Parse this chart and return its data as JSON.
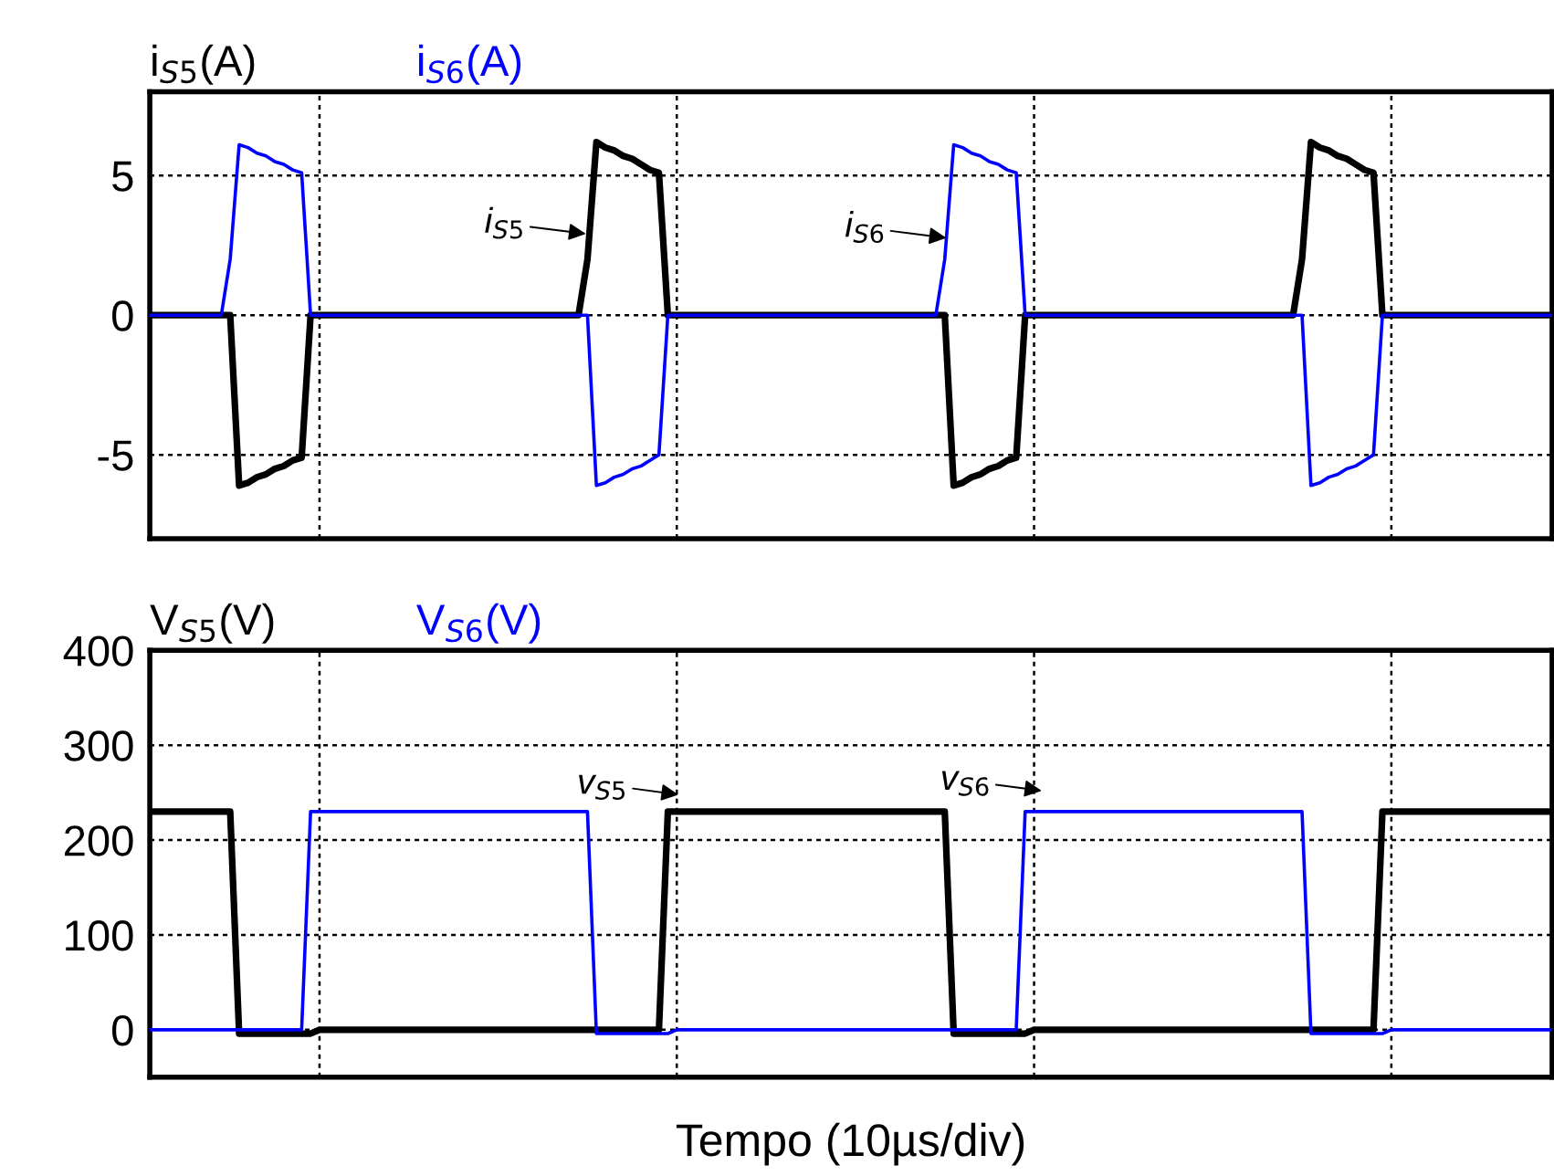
{
  "chart_data": [
    {
      "type": "line",
      "categories": [
        null,
        null,
        null,
        null,
        null,
        null,
        null,
        null,
        null,
        null,
        null,
        null,
        null,
        null,
        null,
        null,
        null,
        null,
        null,
        null,
        null,
        null,
        null,
        null,
        null,
        null,
        null,
        null,
        null,
        null,
        null,
        null,
        null,
        null,
        null,
        null,
        null,
        null,
        null,
        null,
        null,
        null,
        null,
        null,
        null,
        null,
        null,
        null,
        null,
        null,
        null,
        null,
        null,
        null,
        null,
        null,
        null,
        null,
        null,
        null,
        null,
        null,
        null,
        null,
        null,
        null,
        null,
        null,
        null,
        null,
        null,
        null,
        null,
        null,
        null,
        null,
        null,
        null,
        null,
        null,
        null,
        null,
        null,
        null,
        null,
        null,
        null,
        null,
        null,
        null,
        null,
        null,
        null,
        null,
        null,
        null,
        null,
        null,
        null,
        null,
        null,
        null,
        null,
        null,
        null,
        null,
        null,
        null,
        null,
        null,
        null,
        null,
        null,
        null,
        null,
        null,
        null,
        null,
        null,
        null,
        null,
        null,
        null,
        null,
        null,
        null,
        null,
        null,
        null,
        null,
        null,
        null,
        null,
        null,
        null,
        null,
        null,
        null,
        null,
        null,
        null,
        null,
        null,
        null,
        null,
        null,
        null,
        null,
        null,
        null,
        null,
        null,
        null,
        null,
        null,
        null,
        null,
        null
      ],
      "ylim": [
        -8,
        8
      ],
      "yticks": [
        -5,
        0,
        5
      ],
      "grid": true,
      "line_style": "solid",
      "tick_labels": "y",
      "series": [
        {
          "name": "i$_{S5}$(A)",
          "color": "#000000",
          "values": [
            0,
            0,
            0,
            0,
            0,
            0,
            0,
            0,
            0,
            0,
            -6.1,
            -6.0,
            -5.8,
            -5.7,
            -5.5,
            -5.4,
            -5.2,
            -5.1,
            0,
            0,
            0,
            0,
            0,
            0,
            0,
            0,
            0,
            0,
            0,
            0,
            0,
            0,
            0,
            0,
            0,
            0,
            0,
            0,
            0,
            0,
            0,
            0,
            0,
            0,
            0,
            0,
            0,
            0,
            0,
            2,
            6.2,
            6.0,
            5.9,
            5.7,
            5.6,
            5.4,
            5.2,
            5.1,
            0,
            0,
            0,
            0,
            0,
            0,
            0,
            0,
            0,
            0,
            0,
            0,
            0,
            0,
            0,
            0,
            0,
            0,
            0,
            0,
            0,
            0,
            0,
            0,
            0,
            0,
            0,
            0,
            0,
            0,
            0,
            0,
            -6.1,
            -6.0,
            -5.8,
            -5.7,
            -5.5,
            -5.4,
            -5.2,
            -5.1,
            0,
            0,
            0,
            0,
            0,
            0,
            0,
            0,
            0,
            0,
            0,
            0,
            0,
            0,
            0,
            0,
            0,
            0,
            0,
            0,
            0,
            0,
            0,
            0,
            0,
            0,
            0,
            0,
            0,
            0,
            0,
            2,
            6.2,
            6.0,
            5.9,
            5.7,
            5.6,
            5.4,
            5.2,
            5.1,
            0,
            0,
            0,
            0,
            0,
            0,
            0,
            0,
            0,
            0,
            0,
            0,
            0,
            0,
            0,
            0,
            0,
            0,
            0,
            0
          ]
        },
        {
          "name": "i$_{S6}$(A)",
          "color": "#0000ff",
          "values": [
            0,
            0,
            0,
            0,
            0,
            0,
            0,
            0,
            0,
            2,
            6.1,
            6.0,
            5.8,
            5.7,
            5.5,
            5.4,
            5.2,
            5.1,
            0,
            0,
            0,
            0,
            0,
            0,
            0,
            0,
            0,
            0,
            0,
            0,
            0,
            0,
            0,
            0,
            0,
            0,
            0,
            0,
            0,
            0,
            0,
            0,
            0,
            0,
            0,
            0,
            0,
            0,
            0,
            0,
            -6.1,
            -6.0,
            -5.8,
            -5.7,
            -5.5,
            -5.4,
            -5.2,
            -5.0,
            0,
            0,
            0,
            0,
            0,
            0,
            0,
            0,
            0,
            0,
            0,
            0,
            0,
            0,
            0,
            0,
            0,
            0,
            0,
            0,
            0,
            0,
            0,
            0,
            0,
            0,
            0,
            0,
            0,
            0,
            0,
            2,
            6.1,
            6.0,
            5.8,
            5.7,
            5.5,
            5.4,
            5.2,
            5.1,
            0,
            0,
            0,
            0,
            0,
            0,
            0,
            0,
            0,
            0,
            0,
            0,
            0,
            0,
            0,
            0,
            0,
            0,
            0,
            0,
            0,
            0,
            0,
            0,
            0,
            0,
            0,
            0,
            0,
            0,
            0,
            0,
            -6.1,
            -6.0,
            -5.8,
            -5.7,
            -5.5,
            -5.4,
            -5.2,
            -5.0,
            0,
            0,
            0,
            0,
            0,
            0,
            0,
            0,
            0,
            0,
            0,
            0,
            0,
            0,
            0,
            0,
            0,
            0,
            0,
            0
          ]
        }
      ],
      "annotations": [
        "i$_{S5}$",
        "i$_{S6}$"
      ]
    },
    {
      "type": "line",
      "categories": [
        null,
        null,
        null,
        null,
        null,
        null,
        null,
        null,
        null,
        null,
        null,
        null,
        null,
        null,
        null,
        null,
        null,
        null,
        null,
        null,
        null,
        null,
        null,
        null,
        null,
        null,
        null,
        null,
        null,
        null,
        null,
        null,
        null,
        null,
        null,
        null,
        null,
        null,
        null,
        null,
        null,
        null,
        null,
        null,
        null,
        null,
        null,
        null,
        null,
        null,
        null,
        null,
        null,
        null,
        null,
        null,
        null,
        null,
        null,
        null,
        null,
        null,
        null,
        null,
        null,
        null,
        null,
        null,
        null,
        null,
        null,
        null,
        null,
        null,
        null,
        null,
        null,
        null,
        null,
        null,
        null,
        null,
        null,
        null,
        null,
        null,
        null,
        null,
        null,
        null,
        null,
        null,
        null,
        null,
        null,
        null,
        null,
        null,
        null,
        null,
        null,
        null,
        null,
        null,
        null,
        null,
        null,
        null,
        null,
        null,
        null,
        null,
        null,
        null,
        null,
        null,
        null,
        null,
        null,
        null,
        null,
        null,
        null,
        null,
        null,
        null,
        null,
        null,
        null,
        null,
        null,
        null,
        null,
        null,
        null,
        null,
        null,
        null,
        null,
        null,
        null,
        null,
        null,
        null,
        null,
        null,
        null,
        null,
        null,
        null,
        null,
        null,
        null,
        null,
        null,
        null,
        null,
        null
      ],
      "ylim": [
        -50,
        400
      ],
      "yticks": [
        0,
        100,
        200,
        300,
        400
      ],
      "grid": true,
      "line_style": "solid",
      "tick_labels": "y",
      "xlabel": "Tempo (10µs/div)",
      "series": [
        {
          "name": "V$_{S5}$(V)",
          "color": "#000000",
          "values": [
            230,
            230,
            230,
            230,
            230,
            230,
            230,
            230,
            230,
            230,
            -4,
            -4,
            -4,
            -4,
            -4,
            -4,
            -4,
            -4,
            -4,
            0,
            0,
            0,
            0,
            0,
            0,
            0,
            0,
            0,
            0,
            0,
            0,
            0,
            0,
            0,
            0,
            0,
            0,
            0,
            0,
            0,
            0,
            0,
            0,
            0,
            0,
            0,
            0,
            0,
            0,
            0,
            0,
            0,
            0,
            0,
            0,
            0,
            0,
            0,
            230,
            230,
            230,
            230,
            230,
            230,
            230,
            230,
            230,
            230,
            230,
            230,
            230,
            230,
            230,
            230,
            230,
            230,
            230,
            230,
            230,
            230,
            230,
            230,
            230,
            230,
            230,
            230,
            230,
            230,
            230,
            230,
            -4,
            -4,
            -4,
            -4,
            -4,
            -4,
            -4,
            -4,
            -4,
            0,
            0,
            0,
            0,
            0,
            0,
            0,
            0,
            0,
            0,
            0,
            0,
            0,
            0,
            0,
            0,
            0,
            0,
            0,
            0,
            0,
            0,
            0,
            0,
            0,
            0,
            0,
            0,
            0,
            0,
            0,
            0,
            0,
            0,
            0,
            0,
            0,
            0,
            0,
            230,
            230,
            230,
            230,
            230,
            230,
            230,
            230,
            230,
            230,
            230,
            230,
            230,
            230,
            230,
            230,
            230,
            230,
            230,
            230
          ]
        },
        {
          "name": "V$_{S6}$(V)",
          "color": "#0000ff",
          "values": [
            0,
            0,
            0,
            0,
            0,
            0,
            0,
            0,
            0,
            0,
            0,
            0,
            0,
            0,
            0,
            0,
            0,
            0,
            230,
            230,
            230,
            230,
            230,
            230,
            230,
            230,
            230,
            230,
            230,
            230,
            230,
            230,
            230,
            230,
            230,
            230,
            230,
            230,
            230,
            230,
            230,
            230,
            230,
            230,
            230,
            230,
            230,
            230,
            230,
            230,
            -4,
            -4,
            -4,
            -4,
            -4,
            -4,
            -4,
            -4,
            -4,
            0,
            0,
            0,
            0,
            0,
            0,
            0,
            0,
            0,
            0,
            0,
            0,
            0,
            0,
            0,
            0,
            0,
            0,
            0,
            0,
            0,
            0,
            0,
            0,
            0,
            0,
            0,
            0,
            0,
            0,
            0,
            0,
            0,
            0,
            0,
            0,
            0,
            0,
            0,
            230,
            230,
            230,
            230,
            230,
            230,
            230,
            230,
            230,
            230,
            230,
            230,
            230,
            230,
            230,
            230,
            230,
            230,
            230,
            230,
            230,
            230,
            230,
            230,
            230,
            230,
            230,
            230,
            230,
            230,
            230,
            230,
            -4,
            -4,
            -4,
            -4,
            -4,
            -4,
            -4,
            -4,
            -4,
            0,
            0,
            0,
            0,
            0,
            0,
            0,
            0,
            0,
            0,
            0,
            0,
            0,
            0,
            0,
            0,
            0,
            0,
            0
          ]
        }
      ],
      "annotations": [
        "v$_{S5}$",
        "v$_{S6}$"
      ]
    }
  ]
}
